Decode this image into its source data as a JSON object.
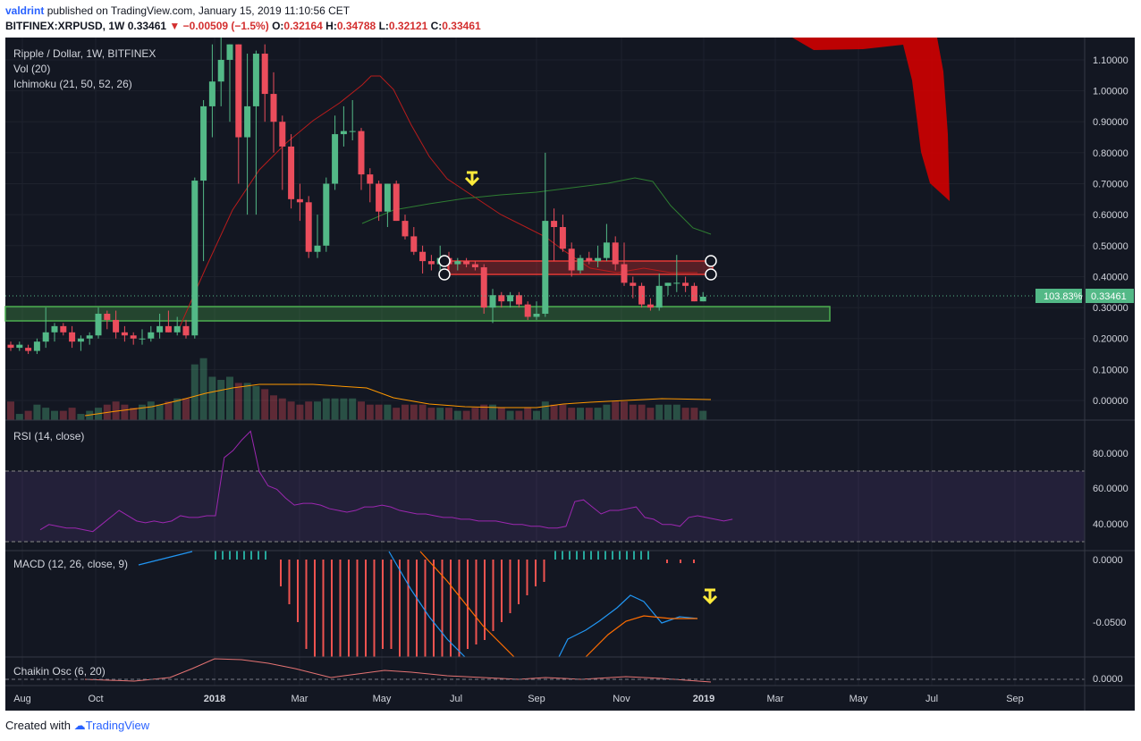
{
  "header": {
    "author": "valdrint",
    "published": "published on TradingView.com, January 15, 2019 11:10:56 CET",
    "symbol": "BITFINEX:XRPUSD, 1W",
    "last": "0.33461",
    "change": "−0.00509 (−1.5%)",
    "o_label": "O:",
    "o_value": "0.32164",
    "h_label": "H:",
    "h_value": "0.34788",
    "l_label": "L:",
    "l_value": "0.32121",
    "c_label": "C:",
    "c_value": "0.33461"
  },
  "panes": {
    "main_title": "Ripple / Dollar, 1W, BITFINEX",
    "vol": "Vol (20)",
    "ichimoku": "Ichimoku (21, 50, 52, 26)",
    "rsi": "RSI (14, close)",
    "macd": "MACD (12, 26, close, 9)",
    "chaikin": "Chaikin Osc (6, 20)"
  },
  "price_axis": [
    "1.10000",
    "1.00000",
    "0.90000",
    "0.80000",
    "0.70000",
    "0.60000",
    "0.50000",
    "0.40000",
    "0.30000",
    "0.20000",
    "0.10000",
    "0.00000"
  ],
  "rsi_axis": [
    "80.0000",
    "60.0000",
    "40.0000"
  ],
  "macd_axis": [
    "0.0000",
    "-0.0500"
  ],
  "chaikin_axis": [
    "0.0000"
  ],
  "time_axis": [
    "Aug",
    "Oct",
    "2018",
    "Mar",
    "May",
    "Jul",
    "Sep",
    "Nov",
    "2019",
    "Mar",
    "May",
    "Jul",
    "Sep"
  ],
  "badges": {
    "pct": "103.83%",
    "price": "0.33461"
  },
  "colors": {
    "bg": "#131722",
    "up": "#53b987",
    "down": "#eb4d5c",
    "support": "#4caf50",
    "resistance": "#d32f2f",
    "arrow": "#ffeb3b",
    "rsi": "#9c27b0",
    "macd": "#2196f3",
    "signal": "#ff6d00",
    "badge": "#53b987"
  },
  "footer": {
    "created": "Created with",
    "brand": "TradingView"
  },
  "chart_data": {
    "type": "candlestick",
    "symbol": "BITFINEX:XRPUSD",
    "interval": "1W",
    "ylim": [
      -0.06,
      1.15
    ],
    "candles": [
      [
        0.18,
        0.19,
        0.16,
        0.17
      ],
      [
        0.17,
        0.19,
        0.16,
        0.18
      ],
      [
        0.17,
        0.18,
        0.15,
        0.16
      ],
      [
        0.16,
        0.2,
        0.15,
        0.19
      ],
      [
        0.19,
        0.3,
        0.17,
        0.22
      ],
      [
        0.22,
        0.25,
        0.19,
        0.24
      ],
      [
        0.24,
        0.25,
        0.21,
        0.22
      ],
      [
        0.22,
        0.24,
        0.17,
        0.19
      ],
      [
        0.19,
        0.21,
        0.16,
        0.2
      ],
      [
        0.2,
        0.22,
        0.18,
        0.21
      ],
      [
        0.21,
        0.3,
        0.2,
        0.28
      ],
      [
        0.28,
        0.29,
        0.23,
        0.26
      ],
      [
        0.26,
        0.29,
        0.2,
        0.22
      ],
      [
        0.22,
        0.24,
        0.19,
        0.21
      ],
      [
        0.21,
        0.22,
        0.18,
        0.2
      ],
      [
        0.2,
        0.23,
        0.18,
        0.2
      ],
      [
        0.2,
        0.24,
        0.19,
        0.22
      ],
      [
        0.22,
        0.28,
        0.2,
        0.24
      ],
      [
        0.24,
        0.29,
        0.22,
        0.22
      ],
      [
        0.22,
        0.27,
        0.21,
        0.24
      ],
      [
        0.24,
        0.26,
        0.2,
        0.21
      ],
      [
        0.21,
        0.72,
        0.2,
        0.71
      ],
      [
        0.71,
        0.97,
        0.45,
        0.95
      ],
      [
        0.95,
        1.15,
        0.85,
        1.03
      ],
      [
        1.03,
        1.2,
        0.95,
        1.1
      ],
      [
        1.1,
        1.15,
        0.9,
        1.15
      ],
      [
        1.15,
        1.15,
        0.7,
        0.85
      ],
      [
        0.85,
        1.12,
        0.6,
        0.95
      ],
      [
        0.95,
        1.13,
        0.6,
        1.12
      ],
      [
        1.12,
        1.15,
        0.9,
        0.99
      ],
      [
        0.99,
        1.06,
        0.8,
        0.9
      ],
      [
        0.9,
        0.92,
        0.68,
        0.82
      ],
      [
        0.82,
        0.86,
        0.62,
        0.65
      ],
      [
        0.65,
        0.7,
        0.58,
        0.64
      ],
      [
        0.64,
        0.66,
        0.46,
        0.48
      ],
      [
        0.48,
        0.6,
        0.46,
        0.5
      ],
      [
        0.5,
        0.72,
        0.48,
        0.7
      ],
      [
        0.7,
        0.92,
        0.68,
        0.86
      ],
      [
        0.86,
        0.95,
        0.82,
        0.87
      ],
      [
        0.87,
        0.97,
        0.84,
        0.87
      ],
      [
        0.87,
        0.88,
        0.68,
        0.73
      ],
      [
        0.73,
        0.75,
        0.64,
        0.7
      ],
      [
        0.7,
        0.71,
        0.58,
        0.61
      ],
      [
        0.61,
        0.7,
        0.56,
        0.7
      ],
      [
        0.7,
        0.71,
        0.58,
        0.58
      ],
      [
        0.58,
        0.6,
        0.52,
        0.53
      ],
      [
        0.53,
        0.56,
        0.47,
        0.48
      ],
      [
        0.48,
        0.5,
        0.41,
        0.45
      ],
      [
        0.45,
        0.47,
        0.42,
        0.44
      ],
      [
        0.44,
        0.5,
        0.42,
        0.46
      ],
      [
        0.46,
        0.48,
        0.42,
        0.44
      ],
      [
        0.44,
        0.46,
        0.42,
        0.45
      ],
      [
        0.45,
        0.46,
        0.43,
        0.44
      ],
      [
        0.44,
        0.45,
        0.42,
        0.43
      ],
      [
        0.43,
        0.44,
        0.28,
        0.3
      ],
      [
        0.3,
        0.36,
        0.25,
        0.34
      ],
      [
        0.34,
        0.35,
        0.3,
        0.32
      ],
      [
        0.32,
        0.35,
        0.3,
        0.34
      ],
      [
        0.34,
        0.35,
        0.3,
        0.31
      ],
      [
        0.31,
        0.32,
        0.26,
        0.27
      ],
      [
        0.27,
        0.32,
        0.26,
        0.28
      ],
      [
        0.28,
        0.8,
        0.27,
        0.58
      ],
      [
        0.58,
        0.62,
        0.45,
        0.56
      ],
      [
        0.56,
        0.6,
        0.48,
        0.49
      ],
      [
        0.49,
        0.51,
        0.4,
        0.42
      ],
      [
        0.42,
        0.47,
        0.41,
        0.46
      ],
      [
        0.46,
        0.48,
        0.44,
        0.45
      ],
      [
        0.45,
        0.5,
        0.43,
        0.46
      ],
      [
        0.46,
        0.57,
        0.45,
        0.51
      ],
      [
        0.51,
        0.53,
        0.42,
        0.44
      ],
      [
        0.44,
        0.51,
        0.37,
        0.38
      ],
      [
        0.38,
        0.4,
        0.33,
        0.37
      ],
      [
        0.37,
        0.38,
        0.3,
        0.31
      ],
      [
        0.31,
        0.33,
        0.29,
        0.3
      ],
      [
        0.3,
        0.41,
        0.29,
        0.37
      ],
      [
        0.37,
        0.38,
        0.34,
        0.38
      ],
      [
        0.38,
        0.47,
        0.35,
        0.38
      ],
      [
        0.38,
        0.4,
        0.35,
        0.37
      ],
      [
        0.37,
        0.38,
        0.32,
        0.32
      ],
      [
        0.32,
        0.35,
        0.32,
        0.335
      ]
    ],
    "volume": [
      0.06,
      0.02,
      0.03,
      0.05,
      0.04,
      0.03,
      0.03,
      0.04,
      0.02,
      0.03,
      0.04,
      0.05,
      0.06,
      0.05,
      0.04,
      0.05,
      0.06,
      0.05,
      0.06,
      0.07,
      0.07,
      0.18,
      0.2,
      0.14,
      0.13,
      0.14,
      0.12,
      0.12,
      0.11,
      0.1,
      0.08,
      0.07,
      0.06,
      0.05,
      0.06,
      0.06,
      0.07,
      0.07,
      0.07,
      0.07,
      0.06,
      0.05,
      0.05,
      0.05,
      0.04,
      0.05,
      0.05,
      0.05,
      0.04,
      0.04,
      0.04,
      0.03,
      0.03,
      0.04,
      0.05,
      0.05,
      0.04,
      0.03,
      0.03,
      0.04,
      0.03,
      0.06,
      0.05,
      0.05,
      0.04,
      0.04,
      0.04,
      0.04,
      0.05,
      0.06,
      0.06,
      0.05,
      0.05,
      0.04,
      0.05,
      0.05,
      0.05,
      0.04,
      0.04,
      0.03
    ],
    "support_zone": [
      0.26,
      0.3
    ],
    "resistance_zone": [
      0.405,
      0.445
    ],
    "last_price": 0.33461,
    "last_pct": "103.83%",
    "rsi": {
      "ylim": [
        24,
        94
      ],
      "bands": [
        30,
        70
      ],
      "values": [
        37,
        40,
        39,
        38,
        38,
        37,
        36,
        40,
        44,
        48,
        45,
        42,
        41,
        42,
        41,
        42,
        45,
        44,
        44,
        45,
        45,
        78,
        82,
        88,
        93,
        70,
        62,
        60,
        55,
        51,
        52,
        52,
        51,
        49,
        48,
        47,
        48,
        50,
        50,
        51,
        50,
        48,
        47,
        46,
        46,
        45,
        44,
        44,
        43,
        43,
        42,
        42,
        42,
        41,
        40,
        40,
        39,
        39,
        38,
        38,
        39,
        53,
        54,
        50,
        46,
        48,
        48,
        49,
        50,
        44,
        43,
        40,
        40,
        39,
        44,
        45,
        44,
        43,
        42,
        43
      ]
    },
    "macd": {
      "ylim": [
        -0.08,
        0.005
      ],
      "zero_level": 0
    },
    "chaikin": {
      "ylim": [
        -0.3,
        1.2
      ]
    }
  }
}
